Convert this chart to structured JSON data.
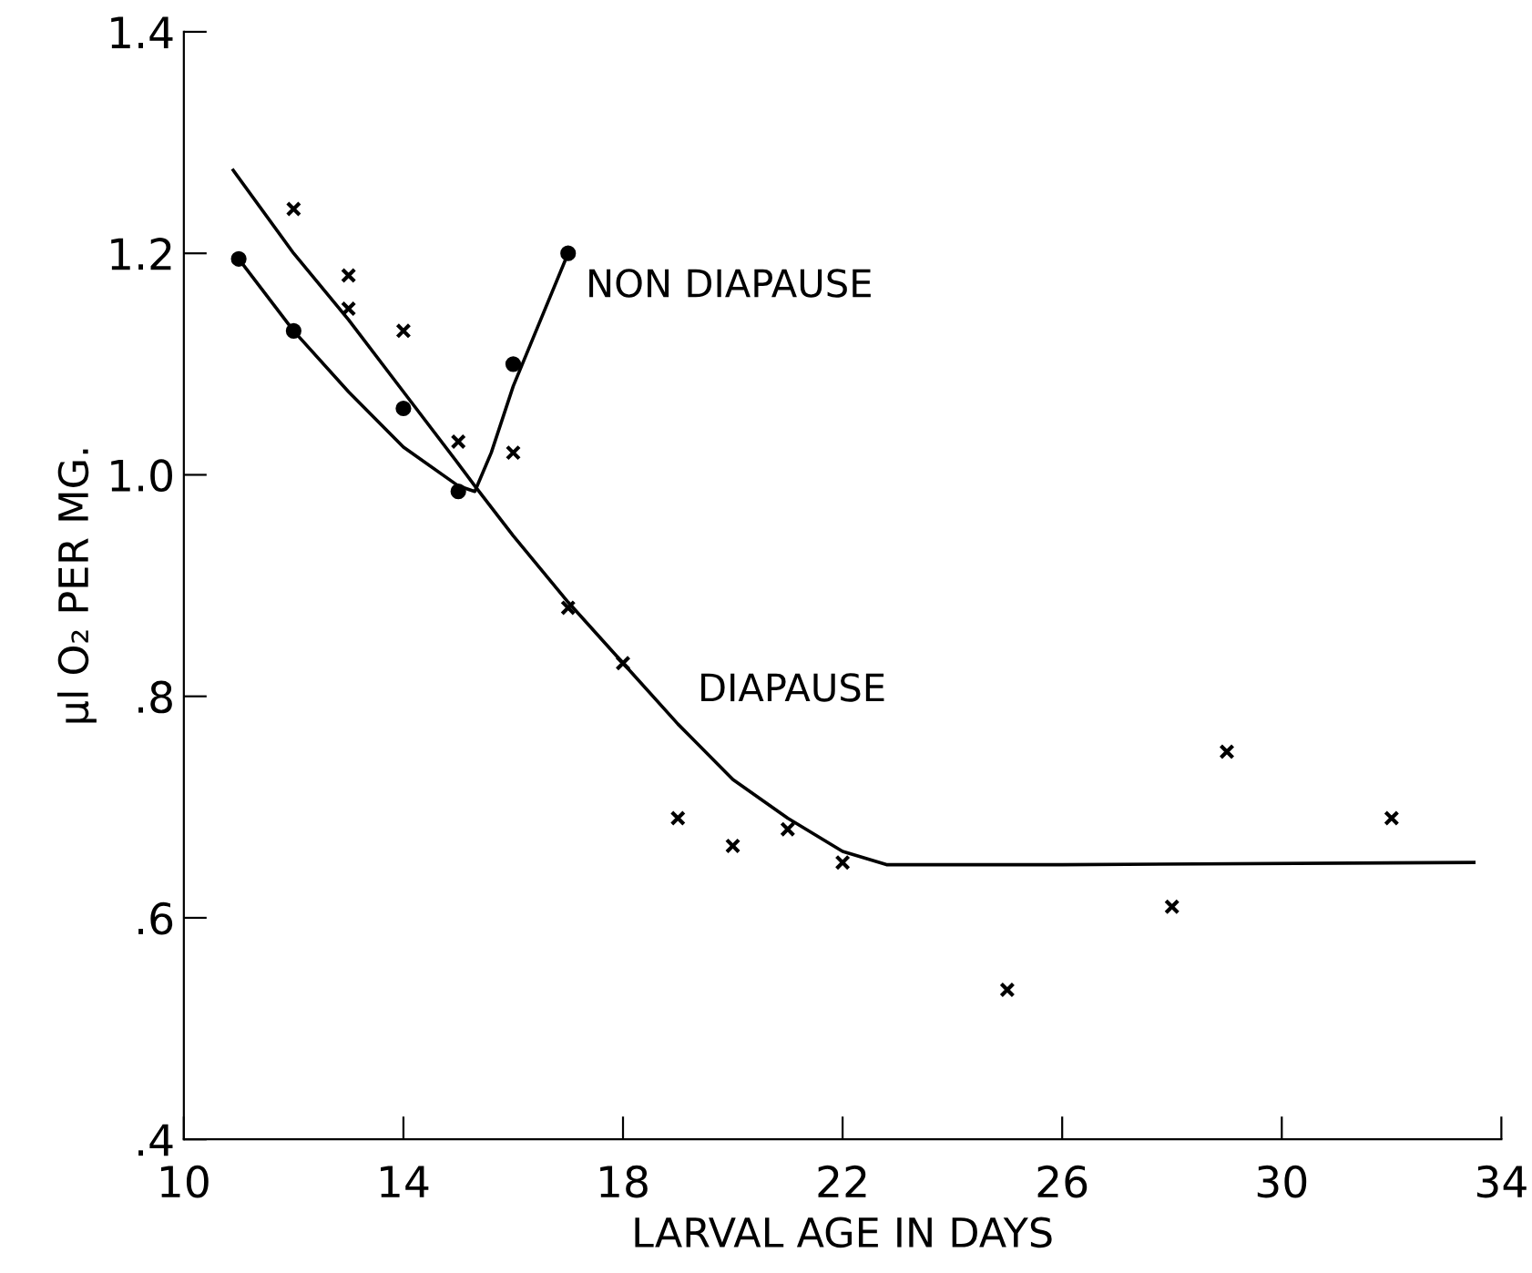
{
  "chart_data": {
    "type": "scatter",
    "xlabel": "LARVAL AGE IN DAYS",
    "ylabel": "μl O₂ PER MG.",
    "xlim": [
      10,
      34
    ],
    "xticks": [
      10,
      14,
      18,
      22,
      26,
      30,
      34
    ],
    "ylim": [
      0.4,
      1.4
    ],
    "yticks": [
      {
        "value": 0.4,
        "label": ".4"
      },
      {
        "value": 0.6,
        "label": ".6"
      },
      {
        "value": 0.8,
        "label": ".8"
      },
      {
        "value": 1.0,
        "label": "1.0"
      },
      {
        "value": 1.2,
        "label": "1.2"
      },
      {
        "value": 1.4,
        "label": "1.4"
      }
    ],
    "grid": false,
    "legend": false,
    "series": [
      {
        "marker": "circle",
        "color": "#000000",
        "x": [
          11,
          12,
          14,
          15,
          16,
          17
        ],
        "values": [
          1.195,
          1.13,
          1.06,
          0.985,
          1.1,
          1.2
        ]
      },
      {
        "marker": "cross",
        "color": "#000000",
        "x": [
          12,
          13,
          13,
          14,
          15,
          16,
          17,
          18,
          19,
          20,
          21,
          22,
          25,
          28,
          29,
          32
        ],
        "values": [
          1.24,
          1.18,
          1.15,
          1.13,
          1.03,
          1.02,
          0.88,
          0.83,
          0.69,
          0.665,
          0.68,
          0.65,
          0.535,
          0.61,
          0.75,
          0.69
        ]
      },
      {
        "type": "line",
        "marker": "none",
        "color": "#000000",
        "x": [
          10.9,
          12,
          13,
          14,
          15,
          15.3,
          16,
          17,
          18,
          19,
          20,
          21,
          22,
          22.8,
          26,
          33.5
        ],
        "values": [
          1.275,
          1.2,
          1.14,
          1.075,
          1.01,
          0.99,
          0.945,
          0.885,
          0.83,
          0.775,
          0.725,
          0.69,
          0.66,
          0.648,
          0.648,
          0.65
        ]
      },
      {
        "type": "line",
        "marker": "none",
        "color": "#000000",
        "x": [
          11,
          12,
          13,
          14,
          15,
          15.3,
          15.6,
          16,
          16.5,
          17
        ],
        "values": [
          1.195,
          1.13,
          1.075,
          1.025,
          0.99,
          0.985,
          1.02,
          1.08,
          1.14,
          1.2
        ]
      }
    ],
    "annotations": [
      "NON DIAPAUSE",
      "DIAPAUSE"
    ]
  }
}
